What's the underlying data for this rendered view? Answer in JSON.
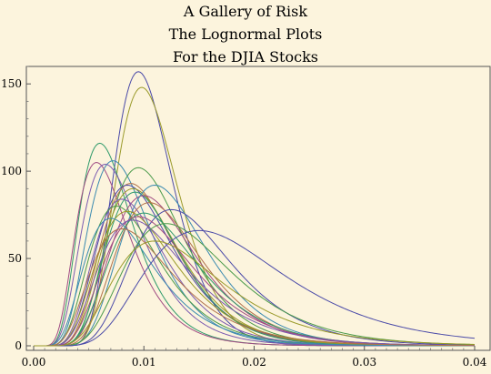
{
  "chart_data": {
    "type": "line",
    "title_lines": [
      "A Gallery of Risk",
      "The Lognormal Plots",
      "For the DJIA Stocks"
    ],
    "xlabel": "",
    "ylabel": "",
    "xlim": [
      0.0,
      0.04
    ],
    "ylim": [
      0,
      160
    ],
    "x_ticks": [
      0.0,
      0.01,
      0.02,
      0.03,
      0.04
    ],
    "x_tick_labels": [
      "0.00",
      "0.01",
      "0.02",
      "0.03",
      "0.04"
    ],
    "y_ticks": [
      0,
      50,
      100,
      150
    ],
    "y_tick_labels": [
      "0",
      "50",
      "100",
      "150"
    ],
    "grid": false,
    "legend": "none",
    "background": "#fcf4dd",
    "colors": [
      "#4a4aa8",
      "#9a9a2a",
      "#2f9a6a",
      "#a04a82",
      "#3a8ab0",
      "#7a5ab0",
      "#4a9a4a",
      "#b0704a"
    ],
    "series": [
      {
        "mode": 0.0095,
        "peak": 157,
        "sigma": 0.28
      },
      {
        "mode": 0.0098,
        "peak": 148,
        "sigma": 0.29
      },
      {
        "mode": 0.006,
        "peak": 116,
        "sigma": 0.4
      },
      {
        "mode": 0.0057,
        "peak": 105,
        "sigma": 0.42
      },
      {
        "mode": 0.0072,
        "peak": 106,
        "sigma": 0.4
      },
      {
        "mode": 0.0065,
        "peak": 104,
        "sigma": 0.42
      },
      {
        "mode": 0.0095,
        "peak": 102,
        "sigma": 0.36
      },
      {
        "mode": 0.0088,
        "peak": 93,
        "sigma": 0.38
      },
      {
        "mode": 0.0085,
        "peak": 92,
        "sigma": 0.4
      },
      {
        "mode": 0.009,
        "peak": 90,
        "sigma": 0.38
      },
      {
        "mode": 0.0092,
        "peak": 88,
        "sigma": 0.36
      },
      {
        "mode": 0.01,
        "peak": 86,
        "sigma": 0.38
      },
      {
        "mode": 0.011,
        "peak": 92,
        "sigma": 0.35
      },
      {
        "mode": 0.008,
        "peak": 84,
        "sigma": 0.4
      },
      {
        "mode": 0.0075,
        "peak": 80,
        "sigma": 0.42
      },
      {
        "mode": 0.0105,
        "peak": 82,
        "sigma": 0.37
      },
      {
        "mode": 0.0125,
        "peak": 78,
        "sigma": 0.36
      },
      {
        "mode": 0.0085,
        "peak": 77,
        "sigma": 0.42
      },
      {
        "mode": 0.01,
        "peak": 76,
        "sigma": 0.4
      },
      {
        "mode": 0.0095,
        "peak": 74,
        "sigma": 0.42
      },
      {
        "mode": 0.007,
        "peak": 73,
        "sigma": 0.45
      },
      {
        "mode": 0.009,
        "peak": 72,
        "sigma": 0.44
      },
      {
        "mode": 0.012,
        "peak": 70,
        "sigma": 0.4
      },
      {
        "mode": 0.008,
        "peak": 67,
        "sigma": 0.46
      },
      {
        "mode": 0.015,
        "peak": 66,
        "sigma": 0.42
      },
      {
        "mode": 0.011,
        "peak": 60,
        "sigma": 0.44
      }
    ]
  }
}
